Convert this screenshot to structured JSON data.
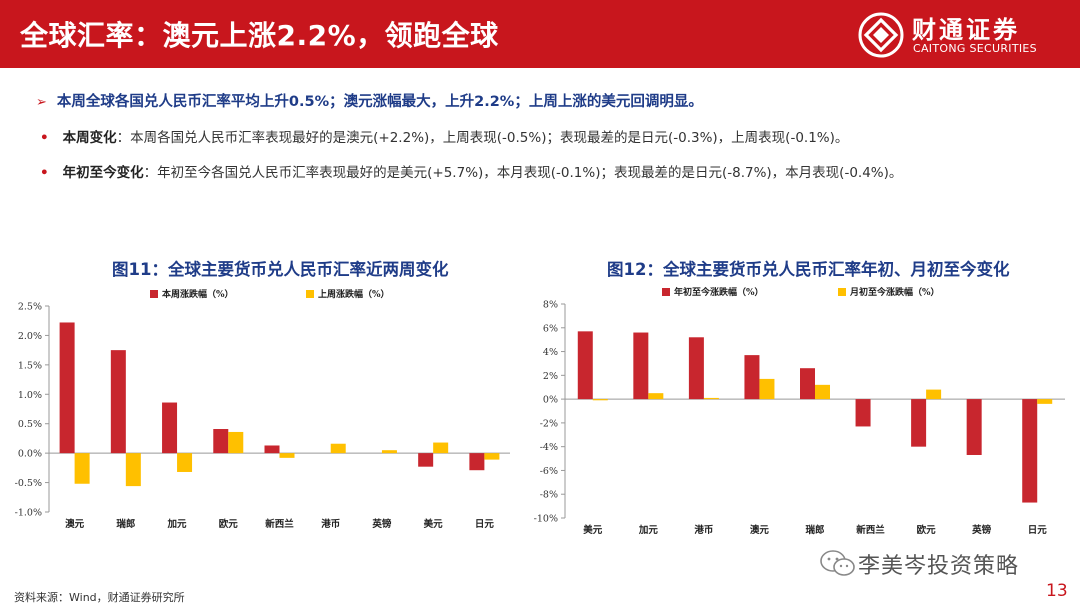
{
  "header": {
    "title": "全球汇率：澳元上涨2.2%，领跑全球",
    "brand_cn": "财通证券",
    "brand_en": "CAITONG SECURITIES",
    "logo_icon": "caitong-logo-icon",
    "color": "#c8161d"
  },
  "summary": "本周全球各国兑人民币汇率平均上升0.5%；澳元涨幅最大，上升2.2%；上周上涨的美元回调明显。",
  "bullets": [
    {
      "label": "本周变化",
      "text": "：本周各国兑人民币汇率表现最好的是澳元(+2.2%)，上周表现(-0.5%)；表现最差的是日元(-0.3%)，上周表现(-0.1%)。"
    },
    {
      "label": "年初至今变化",
      "text": "：年初至今各国兑人民币汇率表现最好的是美元(+5.7%)，本月表现(-0.1%)；表现最差的是日元(-8.7%)，本月表现(-0.4%)。"
    }
  ],
  "chart_data": [
    {
      "type": "bar",
      "title": "图11：全球主要货币兑人民币汇率近两周变化",
      "categories": [
        "澳元",
        "瑞郎",
        "加元",
        "欧元",
        "新西兰",
        "港币",
        "英镑",
        "美元",
        "日元"
      ],
      "series": [
        {
          "name": "本周涨跌幅（%）",
          "color": "#c8262e",
          "values": [
            2.22,
            1.75,
            0.86,
            0.41,
            0.13,
            0.0,
            0.0,
            -0.23,
            -0.29
          ]
        },
        {
          "name": "上周涨跌幅（%）",
          "color": "#ffc000",
          "values": [
            -0.52,
            -0.56,
            -0.32,
            0.36,
            -0.08,
            0.16,
            0.05,
            0.18,
            -0.11
          ]
        }
      ],
      "ylim": [
        -1.0,
        2.5
      ],
      "yticks": [
        -1.0,
        -0.5,
        0.0,
        0.5,
        1.0,
        1.5,
        2.0,
        2.5
      ],
      "ytick_labels": [
        "-1.0%",
        "-0.5%",
        "0.0%",
        "0.5%",
        "1.0%",
        "1.5%",
        "2.0%",
        "2.5%"
      ],
      "legend": "top",
      "grid": false
    },
    {
      "type": "bar",
      "title": "图12：全球主要货币兑人民币汇率年初、月初至今变化",
      "categories": [
        "美元",
        "加元",
        "港币",
        "澳元",
        "瑞郎",
        "新西兰",
        "欧元",
        "英镑",
        "日元"
      ],
      "series": [
        {
          "name": "年初至今涨跌幅（%）",
          "color": "#c8262e",
          "values": [
            5.7,
            5.6,
            5.2,
            3.7,
            2.6,
            -2.3,
            -4.0,
            -4.7,
            -8.7
          ]
        },
        {
          "name": "月初至今涨跌幅（%）",
          "color": "#ffc000",
          "values": [
            -0.1,
            0.5,
            0.1,
            1.7,
            1.2,
            0.0,
            0.8,
            0.0,
            -0.4
          ]
        }
      ],
      "ylim": [
        -10,
        8
      ],
      "yticks": [
        -10,
        -8,
        -6,
        -4,
        -2,
        0,
        2,
        4,
        6,
        8
      ],
      "ytick_labels": [
        "-10%",
        "-8%",
        "-6%",
        "-4%",
        "-2%",
        "0%",
        "2%",
        "4%",
        "6%",
        "8%"
      ],
      "legend": "top",
      "grid": false
    }
  ],
  "footer": {
    "source": "资料来源：Wind，财通证券研究所",
    "watermark": "李美岑投资策略",
    "watermark_icon": "wechat-icon",
    "page": "13"
  }
}
